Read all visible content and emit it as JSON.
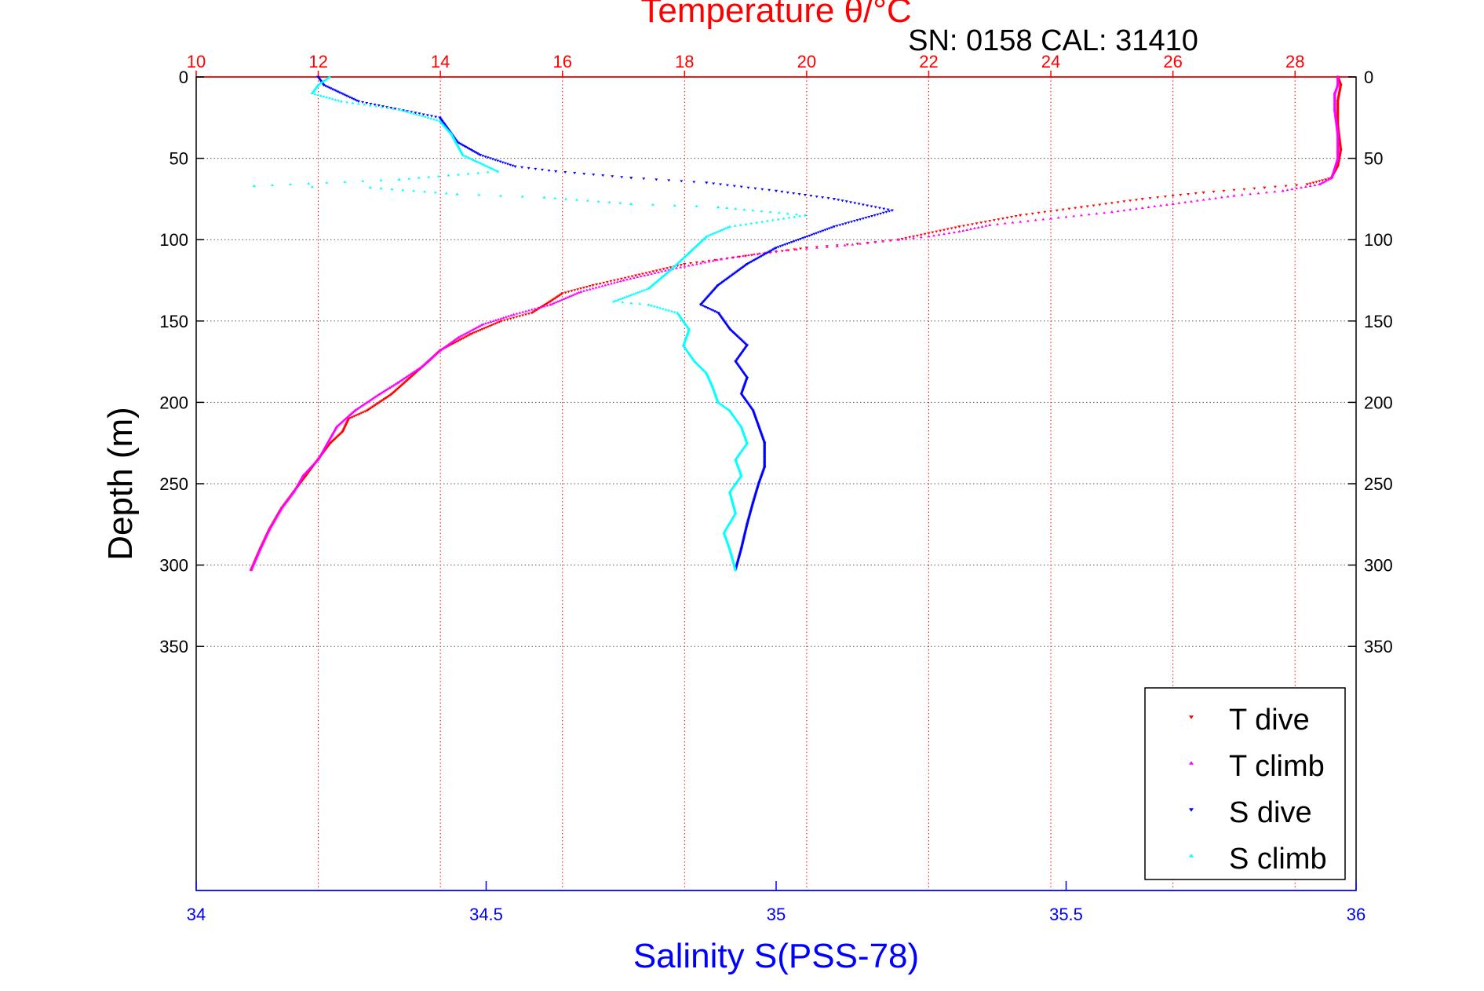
{
  "chart_data": {
    "type": "scatter",
    "title": "Temperature θ/°C",
    "subtitle": "SN: 0158  CAL: 31410",
    "ylabel": "Depth (m)",
    "xlabel": "Salinity S(PSS-78)",
    "temp_axis": {
      "range": [
        10,
        29
      ],
      "ticks": [
        "10",
        "12",
        "14",
        "16",
        "18",
        "20",
        "22",
        "24",
        "26",
        "28"
      ]
    },
    "sal_axis": {
      "range": [
        34,
        36
      ],
      "ticks": [
        "34",
        "34.5",
        "35",
        "35.5",
        "36"
      ]
    },
    "depth_axis": {
      "range": [
        0,
        500
      ],
      "ticks": [
        "0",
        "50",
        "100",
        "150",
        "200",
        "250",
        "300",
        "350"
      ],
      "reversed": true
    },
    "grid": true,
    "legend_position": "bottom-right",
    "colors": {
      "t_dive": "#ff0000",
      "t_climb": "#ff00ff",
      "s_dive": "#0000ff",
      "s_climb": "#00ffff",
      "temp_axis": "#ff0000",
      "sal_axis": "#0000ff"
    },
    "series": [
      {
        "name": "T dive",
        "axis": "temperature",
        "color": "#ff0000",
        "marker": "triangle-down",
        "points": [
          [
            28.7,
            0
          ],
          [
            28.75,
            5
          ],
          [
            28.7,
            15
          ],
          [
            28.7,
            30
          ],
          [
            28.75,
            45
          ],
          [
            28.7,
            55
          ],
          [
            28.6,
            62
          ],
          [
            28.2,
            66
          ],
          [
            27.5,
            68
          ],
          [
            26.5,
            71
          ],
          [
            25.5,
            75
          ],
          [
            24.5,
            80
          ],
          [
            23.5,
            85
          ],
          [
            22.5,
            92
          ],
          [
            22.0,
            96
          ],
          [
            21.5,
            100
          ],
          [
            21.0,
            102
          ],
          [
            20.0,
            105
          ],
          [
            19.0,
            110
          ],
          [
            18.0,
            115
          ],
          [
            17.2,
            122
          ],
          [
            16.5,
            128
          ],
          [
            16.0,
            133
          ],
          [
            15.8,
            138
          ],
          [
            15.5,
            145
          ],
          [
            15.0,
            150
          ],
          [
            14.5,
            158
          ],
          [
            14.0,
            168
          ],
          [
            13.8,
            175
          ],
          [
            13.5,
            185
          ],
          [
            13.2,
            195
          ],
          [
            12.8,
            205
          ],
          [
            12.5,
            210
          ],
          [
            12.4,
            218
          ],
          [
            12.2,
            225
          ],
          [
            12.0,
            235
          ],
          [
            11.8,
            245
          ],
          [
            11.6,
            255
          ],
          [
            11.4,
            265
          ],
          [
            11.2,
            278
          ],
          [
            11.05,
            290
          ],
          [
            10.9,
            303
          ]
        ]
      },
      {
        "name": "T climb",
        "axis": "temperature",
        "color": "#ff00ff",
        "marker": "triangle-up",
        "points": [
          [
            10.9,
            303
          ],
          [
            11.05,
            290
          ],
          [
            11.2,
            278
          ],
          [
            11.4,
            265
          ],
          [
            11.6,
            255
          ],
          [
            11.75,
            245
          ],
          [
            12.0,
            235
          ],
          [
            12.15,
            225
          ],
          [
            12.3,
            215
          ],
          [
            12.6,
            205
          ],
          [
            13.0,
            195
          ],
          [
            13.3,
            188
          ],
          [
            13.7,
            178
          ],
          [
            14.0,
            168
          ],
          [
            14.3,
            160
          ],
          [
            14.7,
            152
          ],
          [
            15.2,
            146
          ],
          [
            15.8,
            140
          ],
          [
            16.3,
            132
          ],
          [
            17.0,
            125
          ],
          [
            17.8,
            118
          ],
          [
            18.6,
            112
          ],
          [
            19.5,
            107
          ],
          [
            20.5,
            104
          ],
          [
            21.5,
            100
          ],
          [
            22.0,
            98
          ],
          [
            22.5,
            95
          ],
          [
            23.0,
            91
          ],
          [
            24.0,
            87
          ],
          [
            25.0,
            83
          ],
          [
            26.0,
            78
          ],
          [
            27.0,
            73
          ],
          [
            27.8,
            70
          ],
          [
            28.4,
            66
          ],
          [
            28.6,
            62
          ],
          [
            28.7,
            50
          ],
          [
            28.7,
            35
          ],
          [
            28.65,
            20
          ],
          [
            28.65,
            10
          ],
          [
            28.7,
            5
          ],
          [
            28.7,
            0
          ]
        ]
      },
      {
        "name": "S dive",
        "axis": "salinity",
        "color": "#0000ff",
        "marker": "triangle-down",
        "points": [
          [
            34.21,
            0
          ],
          [
            34.22,
            5
          ],
          [
            34.28,
            15
          ],
          [
            34.42,
            25
          ],
          [
            34.45,
            40
          ],
          [
            34.49,
            48
          ],
          [
            34.55,
            55
          ],
          [
            34.62,
            58
          ],
          [
            34.75,
            62
          ],
          [
            34.88,
            65
          ],
          [
            35.0,
            70
          ],
          [
            35.1,
            75
          ],
          [
            35.2,
            82
          ],
          [
            35.1,
            92
          ],
          [
            35.0,
            105
          ],
          [
            34.95,
            115
          ],
          [
            34.9,
            128
          ],
          [
            34.87,
            140
          ],
          [
            34.9,
            145
          ],
          [
            34.92,
            155
          ],
          [
            34.95,
            165
          ],
          [
            34.93,
            175
          ],
          [
            34.95,
            185
          ],
          [
            34.94,
            195
          ],
          [
            34.96,
            205
          ],
          [
            34.97,
            215
          ],
          [
            34.98,
            225
          ],
          [
            34.98,
            240
          ],
          [
            34.97,
            250
          ],
          [
            34.96,
            262
          ],
          [
            34.95,
            275
          ],
          [
            34.94,
            290
          ],
          [
            34.93,
            303
          ]
        ]
      },
      {
        "name": "S climb",
        "axis": "salinity",
        "color": "#00ffff",
        "marker": "triangle-up",
        "points": [
          [
            34.93,
            303
          ],
          [
            34.92,
            290
          ],
          [
            34.91,
            280
          ],
          [
            34.93,
            268
          ],
          [
            34.92,
            255
          ],
          [
            34.94,
            245
          ],
          [
            34.93,
            235
          ],
          [
            34.95,
            225
          ],
          [
            34.94,
            215
          ],
          [
            34.92,
            205
          ],
          [
            34.9,
            200
          ],
          [
            34.89,
            190
          ],
          [
            34.88,
            182
          ],
          [
            34.86,
            175
          ],
          [
            34.84,
            165
          ],
          [
            34.85,
            155
          ],
          [
            34.83,
            145
          ],
          [
            34.78,
            140
          ],
          [
            34.72,
            138
          ],
          [
            34.78,
            130
          ],
          [
            34.82,
            118
          ],
          [
            34.85,
            108
          ],
          [
            34.88,
            98
          ],
          [
            34.92,
            92
          ],
          [
            35.05,
            85
          ],
          [
            34.9,
            80
          ],
          [
            34.75,
            78
          ],
          [
            34.6,
            74
          ],
          [
            34.45,
            72
          ],
          [
            34.3,
            68
          ],
          [
            34.1,
            67
          ],
          [
            34.35,
            63
          ],
          [
            34.52,
            58
          ],
          [
            34.46,
            48
          ],
          [
            34.44,
            35
          ],
          [
            34.42,
            27
          ],
          [
            34.35,
            20
          ],
          [
            34.25,
            15
          ],
          [
            34.2,
            10
          ],
          [
            34.21,
            5
          ],
          [
            34.23,
            0
          ]
        ]
      }
    ]
  },
  "legend": {
    "items": [
      {
        "label": "T dive",
        "color": "#ff0000",
        "marker": "triangle-down"
      },
      {
        "label": "T climb",
        "color": "#ff00ff",
        "marker": "triangle-up"
      },
      {
        "label": "S dive",
        "color": "#0000ff",
        "marker": "triangle-down"
      },
      {
        "label": "S climb",
        "color": "#00ffff",
        "marker": "triangle-up"
      }
    ]
  }
}
